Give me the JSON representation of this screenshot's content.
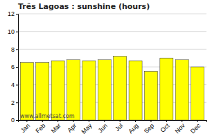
{
  "chart_data": {
    "type": "bar",
    "title": "Três Lagoas : sunshine (hours)",
    "categories": [
      "Jan",
      "Feb",
      "Mar",
      "Apr",
      "May",
      "Jun",
      "Jul",
      "Aug",
      "Sep",
      "Oct",
      "Nov",
      "Dec"
    ],
    "values": [
      6.5,
      6.5,
      6.7,
      6.8,
      6.7,
      6.8,
      7.2,
      6.7,
      5.5,
      7.0,
      6.8,
      6.0
    ],
    "color": "#ffff00",
    "ylim": [
      0,
      12
    ],
    "yticks": [
      0,
      2,
      4,
      6,
      8,
      10,
      12
    ],
    "grid": true,
    "annotations": [
      "www.allmetsat.com"
    ]
  }
}
